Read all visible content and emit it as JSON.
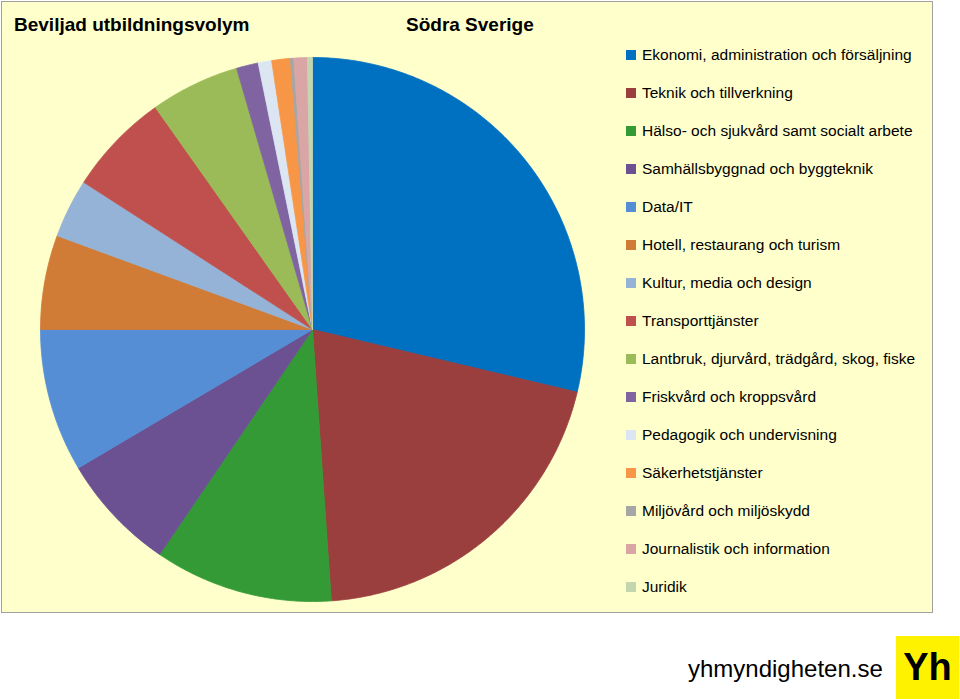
{
  "chart_data": {
    "type": "pie",
    "title": "Beviljad utbildningsvolym",
    "subtitle": "Södra Sverige",
    "source": "yhmyndigheten.se",
    "logo": "Yh",
    "categories": [
      "Ekonomi, administration och försäljning",
      "Teknik och tillverkning",
      "Hälso- och sjukvård samt socialt arbete",
      "Samhällsbyggnad och byggteknik",
      "Data/IT",
      "Hotell, restaurang och turism",
      "Kultur, media och design",
      "Transporttjänster",
      "Lantbruk, djurvård, trädgård, skog, fiske",
      "Friskvård och kroppsvård",
      "Pedagogik och undervisning",
      "Säkerhetstjänster",
      "Miljövård och miljöskydd",
      "Journalistik och information",
      "Juridik"
    ],
    "values": [
      28.7,
      20.2,
      10.6,
      7.0,
      8.5,
      5.6,
      3.5,
      6.1,
      5.3,
      1.3,
      0.8,
      1.1,
      0.2,
      0.8,
      0.3
    ],
    "colors": [
      "#0070c0",
      "#9b3e3e",
      "#349a36",
      "#6b5092",
      "#558ed5",
      "#d07b36",
      "#95b3d7",
      "#c0504d",
      "#9bbb59",
      "#8064a2",
      "#dce6f2",
      "#f79646",
      "#a6a6a6",
      "#d9a5a5",
      "#c3d6b0"
    ],
    "legend": "right",
    "tick_labels": false
  }
}
